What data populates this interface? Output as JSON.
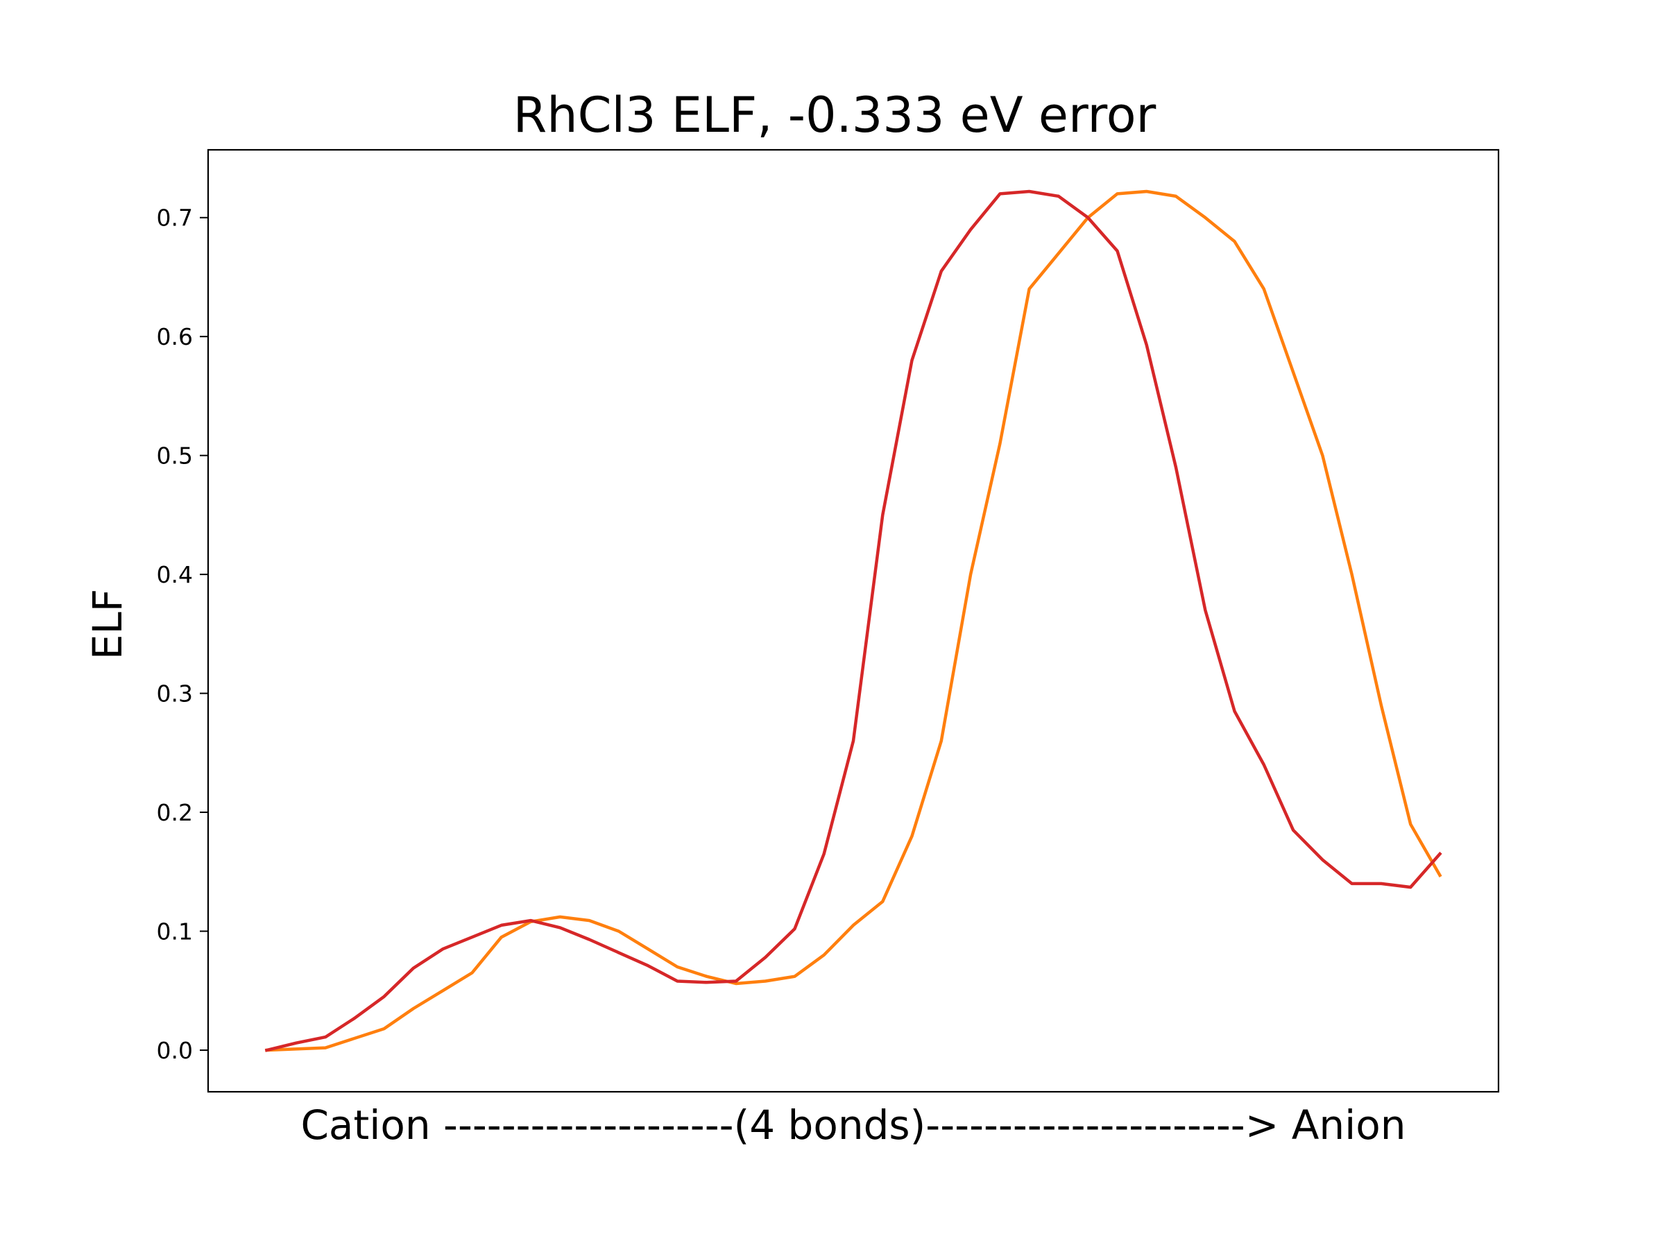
{
  "chart_data": {
    "type": "line",
    "title": "RhCl3 ELF, -0.333 eV error",
    "xlabel": "Cation --------------------(4 bonds)----------------------> Anion",
    "ylabel": "ELF",
    "xlim": [
      -0.05,
      1.05
    ],
    "ylim": [
      -0.035,
      0.757
    ],
    "yticks": [
      0.0,
      0.1,
      0.2,
      0.3,
      0.4,
      0.5,
      0.6,
      0.7
    ],
    "ytick_labels": [
      "0.0",
      "0.1",
      "0.2",
      "0.3",
      "0.4",
      "0.5",
      "0.6",
      "0.7"
    ],
    "grid": false,
    "legend": "none",
    "series": [
      {
        "color": "#ff7f0e",
        "x": [
          0.0,
          0.05,
          0.1,
          0.125,
          0.15,
          0.175,
          0.2,
          0.225,
          0.25,
          0.275,
          0.3,
          0.325,
          0.35,
          0.375,
          0.4,
          0.425,
          0.45,
          0.475,
          0.5,
          0.525,
          0.55,
          0.575,
          0.6,
          0.625,
          0.65,
          0.675,
          0.7,
          0.725,
          0.75,
          0.775,
          0.8,
          0.825,
          0.85,
          0.875,
          0.9,
          0.925,
          0.95,
          0.975,
          1.0
        ],
        "y": [
          0.0,
          0.002,
          0.018,
          0.035,
          0.05,
          0.065,
          0.095,
          0.108,
          0.112,
          0.109,
          0.1,
          0.085,
          0.07,
          0.062,
          0.056,
          0.058,
          0.062,
          0.08,
          0.105,
          0.125,
          0.18,
          0.26,
          0.4,
          0.51,
          0.64,
          0.67,
          0.7,
          0.72,
          0.722,
          0.718,
          0.7,
          0.68,
          0.64,
          0.57,
          0.5,
          0.4,
          0.29,
          0.19,
          0.147
        ]
      },
      {
        "color": "#d62728",
        "x": [
          0.0,
          0.025,
          0.05,
          0.075,
          0.1,
          0.125,
          0.15,
          0.175,
          0.2,
          0.225,
          0.25,
          0.275,
          0.3,
          0.325,
          0.35,
          0.375,
          0.4,
          0.425,
          0.45,
          0.475,
          0.5,
          0.525,
          0.55,
          0.575,
          0.6,
          0.625,
          0.65,
          0.675,
          0.7,
          0.725,
          0.75,
          0.775,
          0.8,
          0.825,
          0.85,
          0.875,
          0.9,
          0.925,
          0.95,
          0.975,
          1.0
        ],
        "y": [
          0.0,
          0.006,
          0.011,
          0.027,
          0.045,
          0.069,
          0.085,
          0.095,
          0.105,
          0.109,
          0.103,
          0.093,
          0.082,
          0.071,
          0.058,
          0.057,
          0.058,
          0.078,
          0.102,
          0.165,
          0.26,
          0.45,
          0.58,
          0.655,
          0.69,
          0.72,
          0.722,
          0.718,
          0.7,
          0.672,
          0.593,
          0.49,
          0.37,
          0.285,
          0.24,
          0.185,
          0.16,
          0.14,
          0.14,
          0.137,
          0.165
        ]
      }
    ]
  }
}
